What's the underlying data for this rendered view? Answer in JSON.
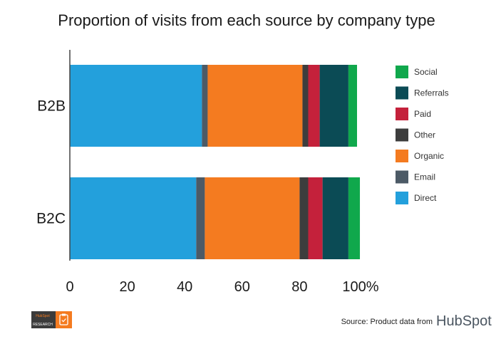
{
  "chart_data": {
    "type": "bar",
    "orientation": "horizontal",
    "stacked": true,
    "title": "Proportion of visits from each source by company type",
    "categories": [
      "B2B",
      "B2C"
    ],
    "series": [
      {
        "name": "Direct",
        "color": "#23a0dc",
        "values": [
          46,
          44
        ]
      },
      {
        "name": "Email",
        "color": "#4c5a66",
        "values": [
          2,
          3
        ]
      },
      {
        "name": "Organic",
        "color": "#f47b20",
        "values": [
          33,
          33
        ]
      },
      {
        "name": "Other",
        "color": "#3d3d3d",
        "values": [
          2,
          3
        ]
      },
      {
        "name": "Paid",
        "color": "#c4213b",
        "values": [
          4,
          5
        ]
      },
      {
        "name": "Referrals",
        "color": "#0b4b55",
        "values": [
          10,
          9
        ]
      },
      {
        "name": "Social",
        "color": "#10a84c",
        "values": [
          3,
          4
        ]
      }
    ],
    "xticks": [
      "0",
      "20",
      "40",
      "60",
      "80",
      "100%"
    ],
    "xtick_values": [
      0,
      20,
      40,
      60,
      80,
      100
    ],
    "xlim": [
      0,
      100
    ],
    "grid": false,
    "legend_position": "right"
  },
  "footer": {
    "source_text": "Source: Product data from",
    "brand_name": "HubSpot",
    "badge_top": "HubSpot",
    "badge_bottom": "RESEARCH"
  }
}
